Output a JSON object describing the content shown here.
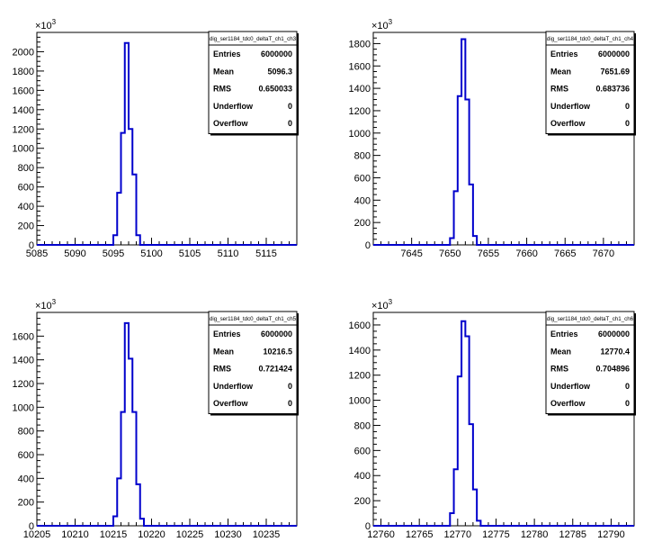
{
  "chart_data": [
    {
      "type": "histogram",
      "title": "",
      "xlabel": "",
      "ylabel": "",
      "multiplier_label": "×10",
      "multiplier_exp": "3",
      "xlim": [
        5085,
        5119
      ],
      "ylim": [
        0,
        2200
      ],
      "xticks": [
        5085,
        5090,
        5095,
        5100,
        5105,
        5110,
        5115
      ],
      "yticks": [
        0,
        200,
        400,
        600,
        800,
        1000,
        1200,
        1400,
        1600,
        1800,
        2000
      ],
      "bin_width": 0.5,
      "bins": [
        {
          "x": 5094.5,
          "y": 0
        },
        {
          "x": 5095.0,
          "y": 100
        },
        {
          "x": 5095.5,
          "y": 540
        },
        {
          "x": 5096.0,
          "y": 1160
        },
        {
          "x": 5096.5,
          "y": 2090
        },
        {
          "x": 5097.0,
          "y": 1200
        },
        {
          "x": 5097.5,
          "y": 730
        },
        {
          "x": 5098.0,
          "y": 100
        },
        {
          "x": 5098.5,
          "y": 0
        }
      ],
      "stats": {
        "name": "dig_ser1184_tdc0_deltaT_ch1_ch3",
        "rows": [
          {
            "label": "Entries",
            "value": "6000000"
          },
          {
            "label": "Mean",
            "value": "5096.3"
          },
          {
            "label": "RMS",
            "value": "0.650033"
          },
          {
            "label": "Underflow",
            "value": "0"
          },
          {
            "label": "Overflow",
            "value": "0"
          }
        ]
      },
      "line_color": "#0000cc"
    },
    {
      "type": "histogram",
      "title": "",
      "xlabel": "",
      "ylabel": "",
      "multiplier_label": "×10",
      "multiplier_exp": "3",
      "xlim": [
        7640,
        7674
      ],
      "ylim": [
        0,
        1900
      ],
      "xticks": [
        7645,
        7650,
        7655,
        7660,
        7665,
        7670
      ],
      "yticks": [
        0,
        200,
        400,
        600,
        800,
        1000,
        1200,
        1400,
        1600,
        1800
      ],
      "bin_width": 0.5,
      "bins": [
        {
          "x": 7649.5,
          "y": 0
        },
        {
          "x": 7650.0,
          "y": 60
        },
        {
          "x": 7650.5,
          "y": 480
        },
        {
          "x": 7651.0,
          "y": 1330
        },
        {
          "x": 7651.5,
          "y": 1840
        },
        {
          "x": 7652.0,
          "y": 1300
        },
        {
          "x": 7652.5,
          "y": 540
        },
        {
          "x": 7653.0,
          "y": 80
        },
        {
          "x": 7653.5,
          "y": 0
        }
      ],
      "stats": {
        "name": "dig_ser1184_tdc0_deltaT_ch1_ch4",
        "rows": [
          {
            "label": "Entries",
            "value": "6000000"
          },
          {
            "label": "Mean",
            "value": "7651.69"
          },
          {
            "label": "RMS",
            "value": "0.683736"
          },
          {
            "label": "Underflow",
            "value": "0"
          },
          {
            "label": "Overflow",
            "value": "0"
          }
        ]
      },
      "line_color": "#0000cc"
    },
    {
      "type": "histogram",
      "title": "",
      "xlabel": "",
      "ylabel": "",
      "multiplier_label": "×10",
      "multiplier_exp": "3",
      "xlim": [
        10205,
        10239
      ],
      "ylim": [
        0,
        1800
      ],
      "xticks": [
        10205,
        10210,
        10215,
        10220,
        10225,
        10230,
        10235
      ],
      "yticks": [
        0,
        200,
        400,
        600,
        800,
        1000,
        1200,
        1400,
        1600
      ],
      "bin_width": 0.5,
      "bins": [
        {
          "x": 10214.5,
          "y": 0
        },
        {
          "x": 10215.0,
          "y": 80
        },
        {
          "x": 10215.5,
          "y": 400
        },
        {
          "x": 10216.0,
          "y": 960
        },
        {
          "x": 10216.5,
          "y": 1710
        },
        {
          "x": 10217.0,
          "y": 1410
        },
        {
          "x": 10217.5,
          "y": 960
        },
        {
          "x": 10218.0,
          "y": 350
        },
        {
          "x": 10218.5,
          "y": 60
        },
        {
          "x": 10219.0,
          "y": 0
        }
      ],
      "stats": {
        "name": "dig_ser1184_tdc0_deltaT_ch1_ch5",
        "rows": [
          {
            "label": "Entries",
            "value": "6000000"
          },
          {
            "label": "Mean",
            "value": "10216.5"
          },
          {
            "label": "RMS",
            "value": "0.721424"
          },
          {
            "label": "Underflow",
            "value": "0"
          },
          {
            "label": "Overflow",
            "value": "0"
          }
        ]
      },
      "line_color": "#0000cc"
    },
    {
      "type": "histogram",
      "title": "",
      "xlabel": "",
      "ylabel": "",
      "multiplier_label": "×10",
      "multiplier_exp": "3",
      "xlim": [
        12759,
        12793
      ],
      "ylim": [
        0,
        1700
      ],
      "xticks": [
        12760,
        12765,
        12770,
        12775,
        12780,
        12785,
        12790
      ],
      "yticks": [
        0,
        200,
        400,
        600,
        800,
        1000,
        1200,
        1400,
        1600
      ],
      "bin_width": 0.5,
      "bins": [
        {
          "x": 12768.5,
          "y": 0
        },
        {
          "x": 12769.0,
          "y": 100
        },
        {
          "x": 12769.5,
          "y": 450
        },
        {
          "x": 12770.0,
          "y": 1190
        },
        {
          "x": 12770.5,
          "y": 1630
        },
        {
          "x": 12771.0,
          "y": 1510
        },
        {
          "x": 12771.5,
          "y": 810
        },
        {
          "x": 12772.0,
          "y": 290
        },
        {
          "x": 12772.5,
          "y": 40
        },
        {
          "x": 12773.0,
          "y": 0
        }
      ],
      "stats": {
        "name": "dig_ser1184_tdc0_deltaT_ch1_ch6",
        "rows": [
          {
            "label": "Entries",
            "value": "6000000"
          },
          {
            "label": "Mean",
            "value": "12770.4"
          },
          {
            "label": "RMS",
            "value": "0.704896"
          },
          {
            "label": "Underflow",
            "value": "0"
          },
          {
            "label": "Overflow",
            "value": "0"
          }
        ]
      },
      "line_color": "#0000cc"
    }
  ]
}
